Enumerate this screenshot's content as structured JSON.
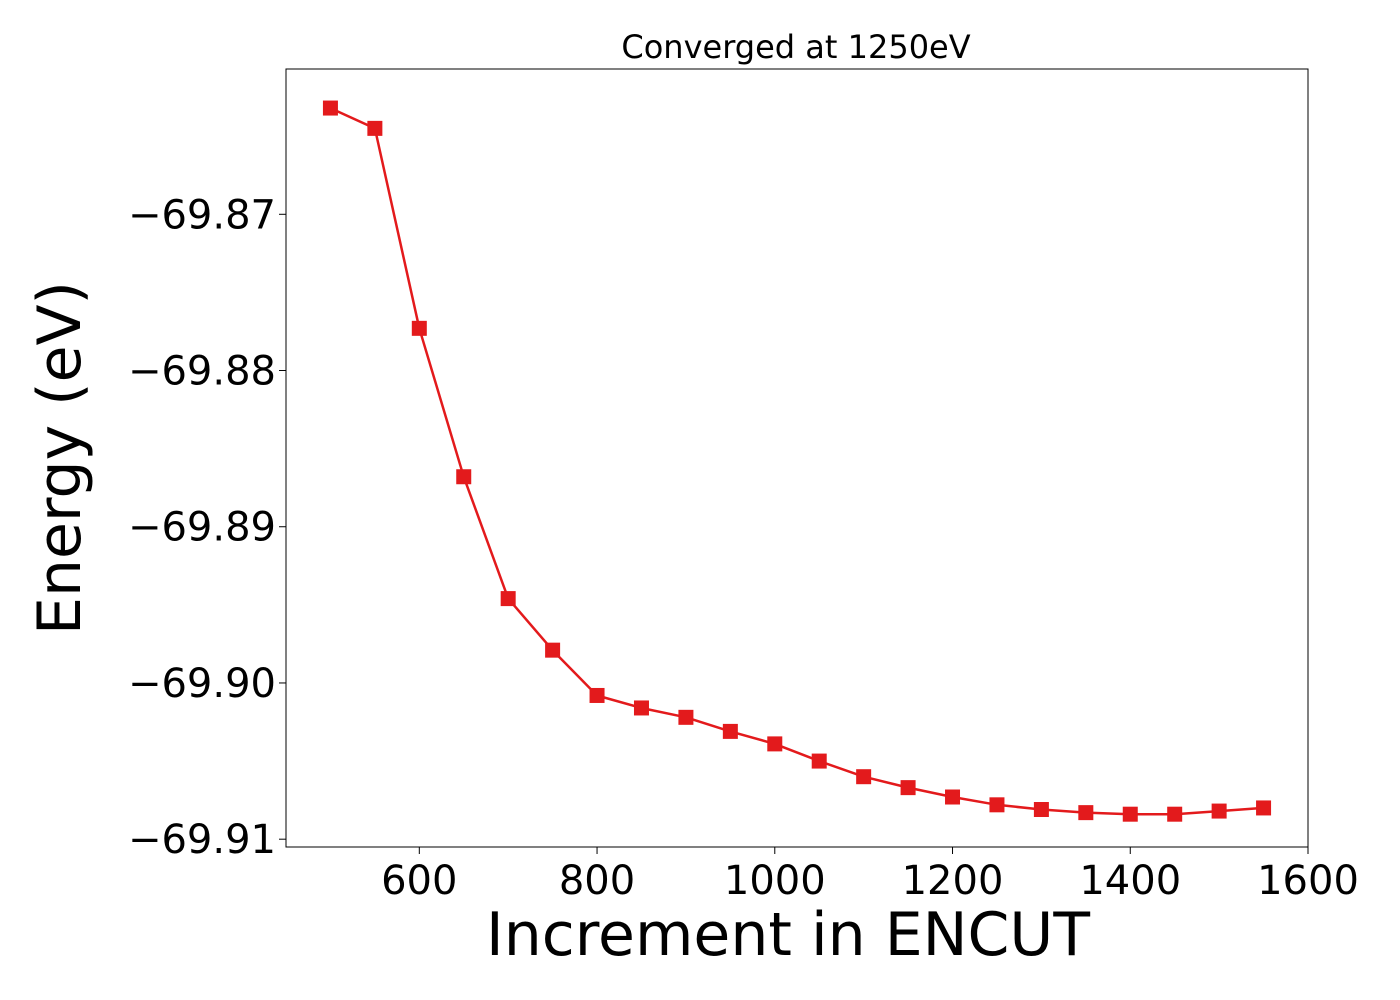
{
  "chart_data": {
    "type": "line",
    "title": "Converged at 1250eV",
    "xlabel": "Increment in ENCUT",
    "ylabel": "Energy (eV)",
    "xlim": [
      450,
      1600
    ],
    "ylim": [
      -69.9105,
      -69.8607
    ],
    "x_ticks": [
      600,
      800,
      1000,
      1200,
      1400,
      1600
    ],
    "x_tick_labels": [
      "600",
      "800",
      "1000",
      "1200",
      "1400",
      "1600"
    ],
    "y_ticks": [
      -69.87,
      -69.88,
      -69.89,
      -69.9,
      -69.91
    ],
    "y_tick_labels": [
      "−69.87",
      "−69.88",
      "−69.89",
      "−69.90",
      "−69.91"
    ],
    "grid": false,
    "series": [
      {
        "color": "#e31a1c",
        "marker": "square",
        "x": [
          500,
          550,
          600,
          650,
          700,
          750,
          800,
          850,
          900,
          950,
          1000,
          1050,
          1100,
          1150,
          1200,
          1250,
          1300,
          1350,
          1400,
          1450,
          1500,
          1550
        ],
        "y": [
          -69.8632,
          -69.8645,
          -69.8773,
          -69.8868,
          -69.8946,
          -69.8979,
          -69.9008,
          -69.9016,
          -69.9022,
          -69.9031,
          -69.9039,
          -69.905,
          -69.906,
          -69.9067,
          -69.9073,
          -69.9078,
          -69.9081,
          -69.9083,
          -69.9084,
          -69.9084,
          -69.9082,
          -69.908
        ]
      }
    ]
  }
}
